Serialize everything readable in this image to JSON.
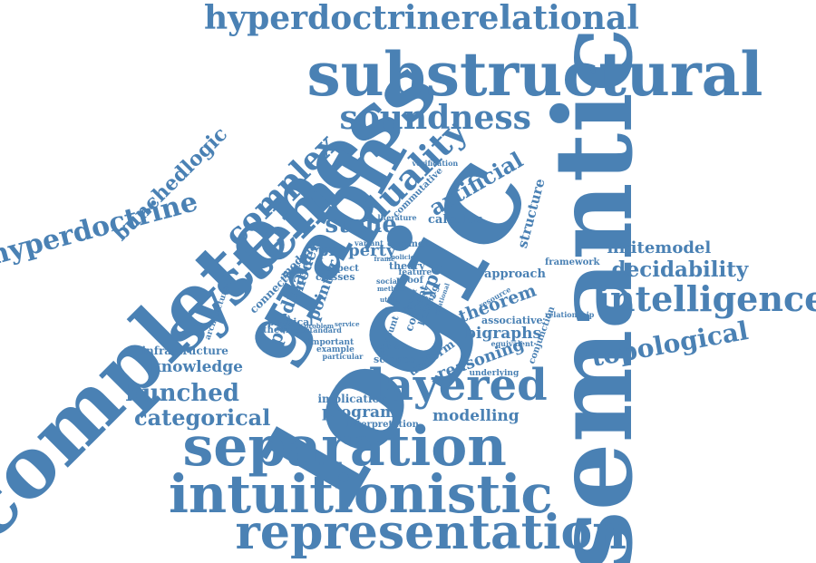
{
  "color": "#4a81b4",
  "words": [
    "logic",
    "semantic",
    "completeness",
    "substructural",
    "separation",
    "intuitionistic",
    "representation",
    "hyperdoctrinerelational",
    "graph",
    "system",
    "layered",
    "intelligence",
    "soundness",
    "duality",
    "complex",
    "hyperdoctrine",
    "bunchedlogic",
    "topological",
    "decidability",
    "categorical",
    "bunched",
    "stone",
    "artificial",
    "finitemodel",
    "knowledge",
    "bigraphs",
    "theorem",
    "reasoning",
    "program",
    "modelling",
    "uniform",
    "structure",
    "predicate",
    "model",
    "pointer",
    "property",
    "calculus",
    "type",
    "approach",
    "framework",
    "conjunction",
    "associative",
    "relationship",
    "infrastructure",
    "implication",
    "interpretation",
    "physical",
    "classes",
    "respect",
    "modular",
    "connective",
    "theories",
    "common",
    "literature",
    "verification",
    "commutative",
    "underlying",
    "science",
    "important",
    "standard",
    "particular",
    "example",
    "equivalent",
    "resource",
    "concept",
    "account",
    "theory",
    "feature",
    "proof",
    "social",
    "building",
    "problem",
    "service",
    "security",
    "variant",
    "utility",
    "policies",
    "method",
    "architecture",
    "version",
    "result",
    "relational",
    "frame"
  ]
}
